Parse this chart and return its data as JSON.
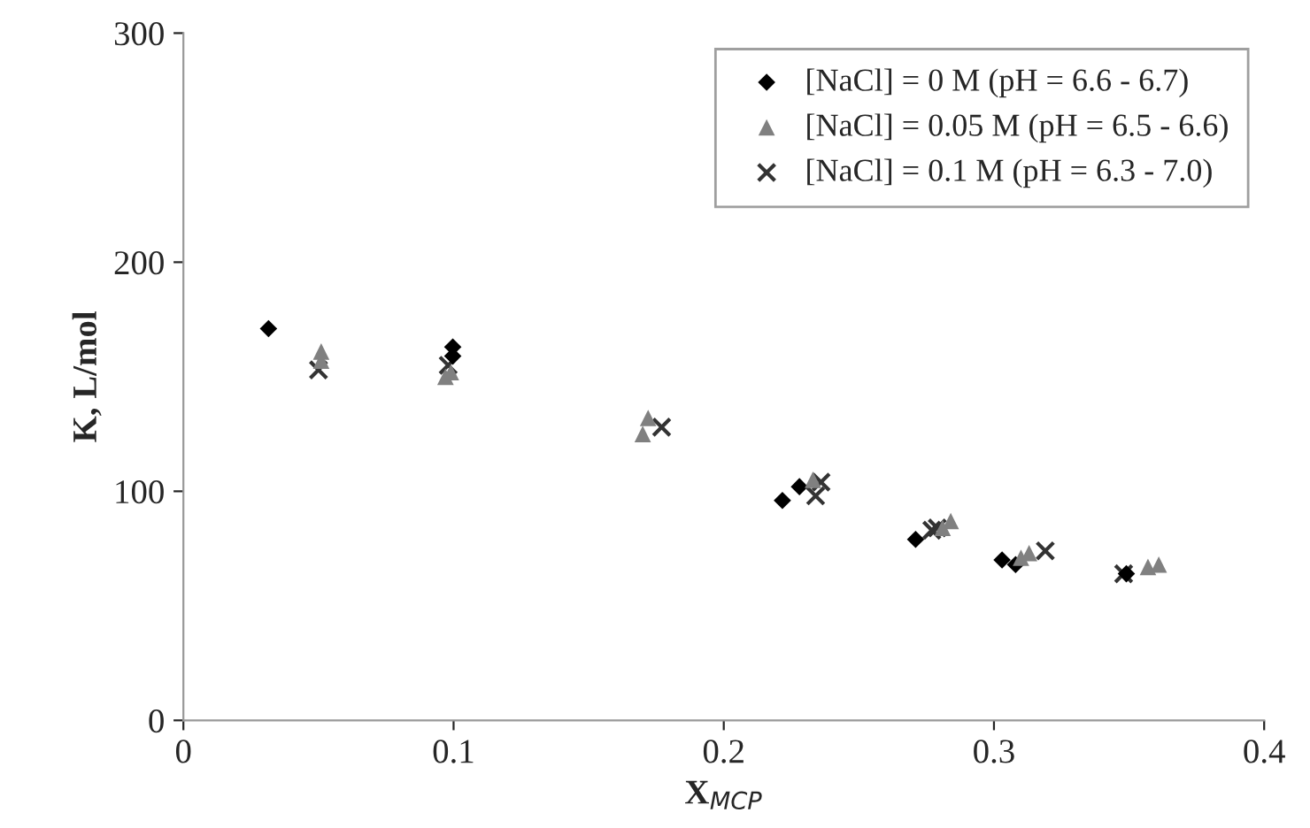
{
  "chart_data": {
    "type": "scatter",
    "xlabel": "X$_{MCP}$",
    "ylabel": "K, L/mol",
    "xlim": [
      0,
      0.4
    ],
    "xticks": [
      {
        "value": 0,
        "label": "0"
      },
      0.1,
      0.2,
      0.3,
      0.4
    ],
    "ylim": [
      0,
      300
    ],
    "yticks": [
      0,
      100,
      200,
      300
    ],
    "grid": false,
    "legend": "top right",
    "series": [
      {
        "name": "[NaCl] = 0 M (pH = 6.6 - 6.7)",
        "color": "#000000",
        "marker": "diamond",
        "x": [
          0.0315,
          0.0997,
          0.0997,
          0.2217,
          0.228,
          0.271,
          0.303,
          0.308,
          0.349
        ],
        "values": [
          171,
          163,
          159,
          96,
          102,
          79,
          70,
          68,
          64
        ]
      },
      {
        "name": "[NaCl] = 0.05 M (pH = 6.5 - 6.6)",
        "color": "#808080",
        "marker": "triangle",
        "x": [
          0.051,
          0.051,
          0.097,
          0.099,
          0.17,
          0.172,
          0.233,
          0.281,
          0.284,
          0.31,
          0.313,
          0.357,
          0.361
        ],
        "values": [
          161,
          157,
          150,
          152,
          125,
          132,
          105,
          84,
          87,
          71,
          73,
          67,
          68
        ]
      },
      {
        "name": "[NaCl] = 0.1 M (pH = 6.3 - 7.0)",
        "color": "#333333",
        "marker": "cross",
        "x": [
          0.05,
          0.098,
          0.177,
          0.234,
          0.236,
          0.277,
          0.279,
          0.319,
          0.348
        ],
        "values": [
          153,
          155,
          128,
          98,
          104,
          83,
          84,
          74,
          64
        ]
      }
    ]
  }
}
